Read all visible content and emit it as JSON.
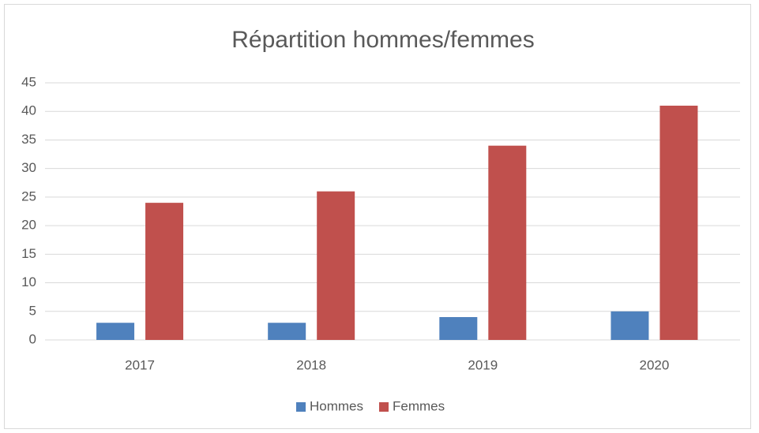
{
  "chart_data": {
    "type": "bar",
    "title": "Répartition hommes/femmes",
    "categories": [
      "2017",
      "2018",
      "2019",
      "2020"
    ],
    "series": [
      {
        "name": "Hommes",
        "color": "#4f81bd",
        "values": [
          3,
          3,
          4,
          5
        ]
      },
      {
        "name": "Femmes",
        "color": "#c0504d",
        "values": [
          24,
          26,
          34,
          41
        ]
      }
    ],
    "ylim": [
      0,
      45
    ],
    "yticks": [
      0,
      5,
      10,
      15,
      20,
      25,
      30,
      35,
      40,
      45
    ],
    "grid": true,
    "legend": "bottom"
  }
}
